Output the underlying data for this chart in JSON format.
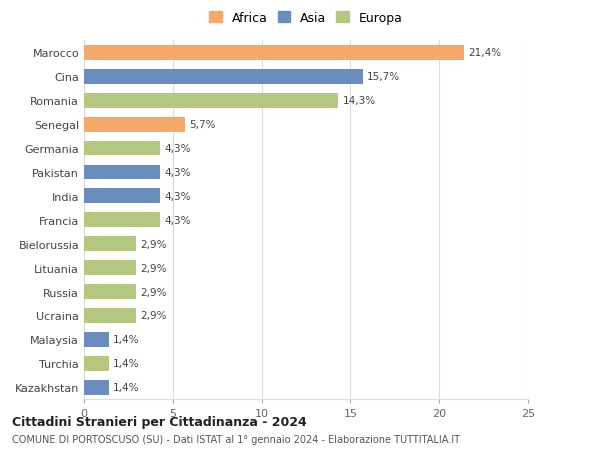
{
  "categories": [
    "Marocco",
    "Cina",
    "Romania",
    "Senegal",
    "Germania",
    "Pakistan",
    "India",
    "Francia",
    "Bielorussia",
    "Lituania",
    "Russia",
    "Ucraina",
    "Malaysia",
    "Turchia",
    "Kazakhstan"
  ],
  "values": [
    21.4,
    15.7,
    14.3,
    5.7,
    4.3,
    4.3,
    4.3,
    4.3,
    2.9,
    2.9,
    2.9,
    2.9,
    1.4,
    1.4,
    1.4
  ],
  "labels": [
    "21,4%",
    "15,7%",
    "14,3%",
    "5,7%",
    "4,3%",
    "4,3%",
    "4,3%",
    "4,3%",
    "2,9%",
    "2,9%",
    "2,9%",
    "2,9%",
    "1,4%",
    "1,4%",
    "1,4%"
  ],
  "bar_colors": [
    "#F4A96A",
    "#6B8DBE",
    "#B5C882",
    "#F4A96A",
    "#B5C882",
    "#6B8DBE",
    "#6B8DBE",
    "#B5C882",
    "#B5C882",
    "#B5C882",
    "#B5C882",
    "#B5C882",
    "#6B8DBE",
    "#B5C882",
    "#6B8DBE"
  ],
  "xlim": [
    0,
    25
  ],
  "xticks": [
    0,
    5,
    10,
    15,
    20,
    25
  ],
  "title": "Cittadini Stranieri per Cittadinanza - 2024",
  "subtitle": "COMUNE DI PORTOSCUSO (SU) - Dati ISTAT al 1° gennaio 2024 - Elaborazione TUTTITALIA.IT",
  "background_color": "#ffffff",
  "grid_color": "#dddddd",
  "legend_labels": [
    "Africa",
    "Asia",
    "Europa"
  ],
  "legend_colors": [
    "#F4A96A",
    "#6B8DBE",
    "#B5C882"
  ]
}
